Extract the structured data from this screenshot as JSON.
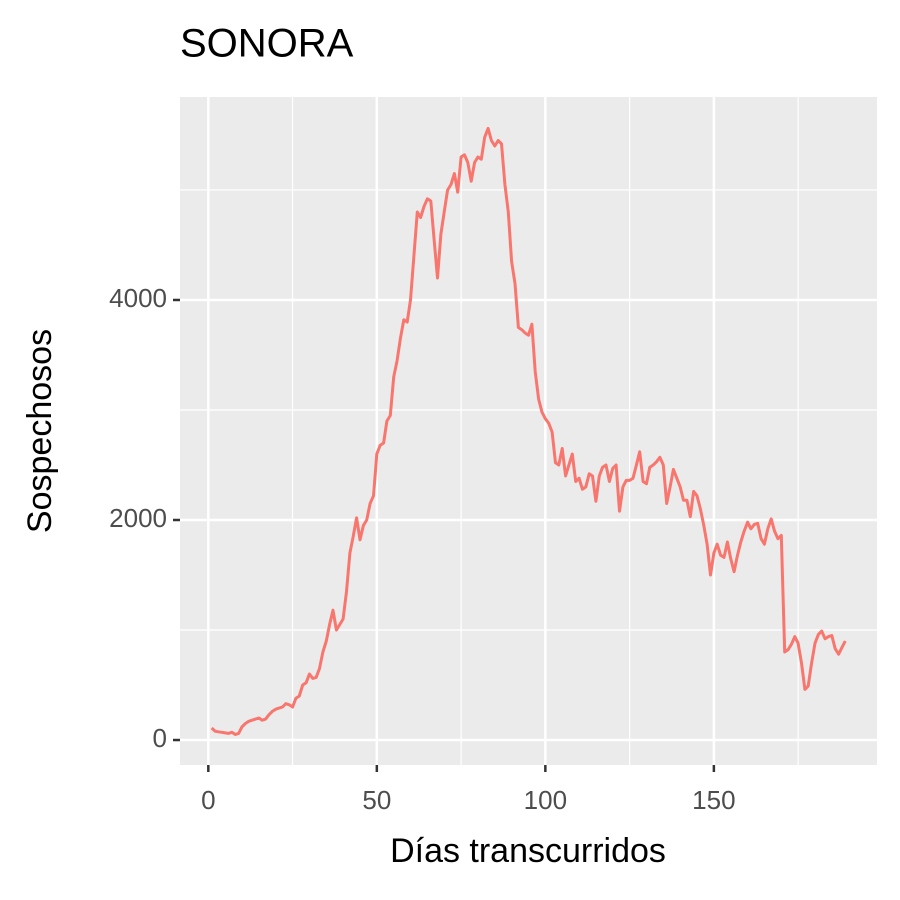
{
  "chart_data": {
    "type": "line",
    "title": "SONORA",
    "x_label": "Días transcurridos",
    "y_label": "Sospechosos",
    "x": [
      1,
      2,
      3,
      4,
      5,
      6,
      7,
      8,
      9,
      10,
      11,
      12,
      13,
      14,
      15,
      16,
      17,
      18,
      19,
      20,
      21,
      22,
      23,
      24,
      25,
      26,
      27,
      28,
      29,
      30,
      31,
      32,
      33,
      34,
      35,
      36,
      37,
      38,
      39,
      40,
      41,
      42,
      43,
      44,
      45,
      46,
      47,
      48,
      49,
      50,
      51,
      52,
      53,
      54,
      55,
      56,
      57,
      58,
      59,
      60,
      61,
      62,
      63,
      64,
      65,
      66,
      67,
      68,
      69,
      70,
      71,
      72,
      73,
      74,
      75,
      76,
      77,
      78,
      79,
      80,
      81,
      82,
      83,
      84,
      85,
      86,
      87,
      88,
      89,
      90,
      91,
      92,
      93,
      94,
      95,
      96,
      97,
      98,
      99,
      100,
      101,
      102,
      103,
      104,
      105,
      106,
      107,
      108,
      109,
      110,
      111,
      112,
      113,
      114,
      115,
      116,
      117,
      118,
      119,
      120,
      121,
      122,
      123,
      124,
      125,
      126,
      127,
      128,
      129,
      130,
      131,
      132,
      133,
      134,
      135,
      136,
      137,
      138,
      139,
      140,
      141,
      142,
      143,
      144,
      145,
      146,
      147,
      148,
      149,
      150,
      151,
      152,
      153,
      154,
      155,
      156,
      157,
      158,
      159,
      160,
      161,
      162,
      163,
      164,
      165,
      166,
      167,
      168,
      169,
      170,
      171,
      172,
      173,
      174,
      175,
      176,
      177,
      178,
      179,
      180,
      181,
      182,
      183,
      184,
      185,
      186,
      187,
      188,
      189
    ],
    "series": [
      {
        "color": "#f8766d",
        "values": [
          109,
          80,
          75,
          70,
          65,
          60,
          70,
          50,
          60,
          120,
          150,
          170,
          180,
          190,
          200,
          180,
          190,
          230,
          260,
          280,
          290,
          300,
          330,
          320,
          300,
          380,
          400,
          500,
          520,
          600,
          560,
          570,
          650,
          800,
          900,
          1050,
          1180,
          1000,
          1050,
          1100,
          1350,
          1700,
          1850,
          2020,
          1820,
          1950,
          2000,
          2150,
          2220,
          2600,
          2680,
          2700,
          2900,
          2950,
          3300,
          3450,
          3650,
          3820,
          3800,
          4000,
          4400,
          4800,
          4750,
          4850,
          4920,
          4900,
          4550,
          4200,
          4600,
          4800,
          5000,
          5050,
          5150,
          4980,
          5300,
          5320,
          5250,
          5080,
          5250,
          5300,
          5280,
          5480,
          5560,
          5450,
          5400,
          5450,
          5420,
          5050,
          4800,
          4350,
          4150,
          3750,
          3730,
          3700,
          3680,
          3780,
          3350,
          3100,
          2980,
          2920,
          2880,
          2800,
          2520,
          2500,
          2650,
          2400,
          2500,
          2600,
          2350,
          2380,
          2280,
          2300,
          2420,
          2400,
          2170,
          2400,
          2480,
          2500,
          2350,
          2470,
          2500,
          2080,
          2300,
          2360,
          2360,
          2380,
          2500,
          2620,
          2350,
          2330,
          2480,
          2500,
          2530,
          2570,
          2500,
          2150,
          2300,
          2460,
          2380,
          2300,
          2180,
          2180,
          2030,
          2260,
          2220,
          2100,
          1950,
          1780,
          1500,
          1700,
          1780,
          1680,
          1660,
          1800,
          1650,
          1530,
          1680,
          1800,
          1900,
          1980,
          1920,
          1960,
          1970,
          1830,
          1780,
          1920,
          2010,
          1900,
          1830,
          1860,
          800,
          820,
          870,
          940,
          880,
          700,
          460,
          490,
          700,
          880,
          960,
          990,
          920,
          940,
          950,
          830,
          780,
          840,
          900
        ]
      }
    ],
    "xlim": [
      -8.4,
      198.4
    ],
    "xticks": [
      0,
      50,
      100,
      150
    ],
    "x_minor_grid": [
      25,
      75,
      125,
      175
    ],
    "ylim": [
      -227,
      5845
    ],
    "yticks": [
      0,
      2000,
      4000
    ],
    "y_minor_grid": [
      1000,
      3000,
      5000
    ],
    "grid": true
  }
}
